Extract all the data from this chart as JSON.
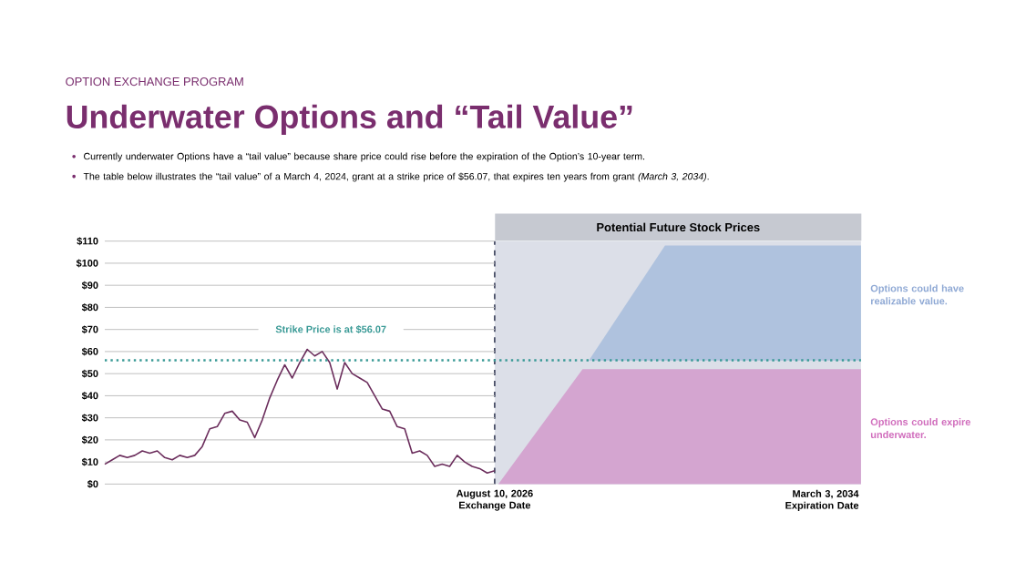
{
  "chart_data": [
    {
      "type": "line",
      "subtitle": "OPTION EXCHANGE PROGRAM",
      "title": "Underwater Options and “Tail Value”",
      "annotations": [
        "Currently underwater Options have a “tail value” because share price could rise before the expiration of the Option’s 10-year term.",
        "The table below illustrates the “tail value” of a March 4, 2024, grant at a strike price of $56.07, that expires ten years from grant *(March 3, 2034)*."
      ],
      "categories": [
        null,
        null,
        null,
        null,
        null,
        null,
        null,
        null,
        null,
        null,
        null,
        null,
        null,
        null,
        null,
        null,
        null,
        null,
        null,
        null,
        null,
        null,
        null,
        null,
        null,
        null,
        null,
        null,
        null,
        null,
        null,
        null,
        null,
        null,
        null,
        null,
        null,
        null,
        null,
        null,
        null,
        null,
        null,
        null,
        null,
        null,
        null,
        null,
        null,
        null,
        null,
        null,
        null
      ],
      "ylim": [
        0,
        110
      ],
      "yticks": [
        {
          "value": 0,
          "label": "$0"
        },
        {
          "value": 10,
          "label": "$10"
        },
        {
          "value": 20,
          "label": "$20"
        },
        {
          "value": 30,
          "label": "$30"
        },
        {
          "value": 40,
          "label": "$40"
        },
        {
          "value": 50,
          "label": "$50"
        },
        {
          "value": 60,
          "label": "$60"
        },
        {
          "value": 70,
          "label": "$70"
        },
        {
          "value": 80,
          "label": "$80"
        },
        {
          "value": 90,
          "label": "$90"
        },
        {
          "value": 100,
          "label": "$100"
        },
        {
          "value": 110,
          "label": "$110"
        }
      ],
      "tick_labels": "y",
      "grid": "y",
      "ref_lines": [
        {
          "axis": "y",
          "value": 56.07,
          "label": "Strike Price is at $56.07",
          "color": "#3a9a96",
          "line_style": "dotted"
        }
      ],
      "series": [
        {
          "color": "#6b2d5c",
          "values": [
            9,
            11,
            13,
            12,
            13,
            15,
            14,
            15,
            12,
            11,
            13,
            12,
            13,
            17,
            25,
            26,
            32,
            33,
            29,
            28,
            21,
            29,
            39,
            47,
            54,
            48,
            55,
            61,
            58,
            60,
            55,
            43,
            55,
            50,
            48,
            46,
            40,
            34,
            33,
            26,
            25,
            14,
            15,
            13,
            8,
            9,
            8,
            13,
            10,
            8,
            7,
            5,
            6
          ]
        }
      ]
    },
    {
      "type": "other",
      "title": "Potential Future Stock Prices",
      "annotations": [
        "August 10, 2026 Exchange Date",
        "March 3, 2034 Expiration Date",
        "Options could have realizable value.",
        "Options could expire underwater."
      ],
      "color": "#dcdfe8"
    }
  ]
}
